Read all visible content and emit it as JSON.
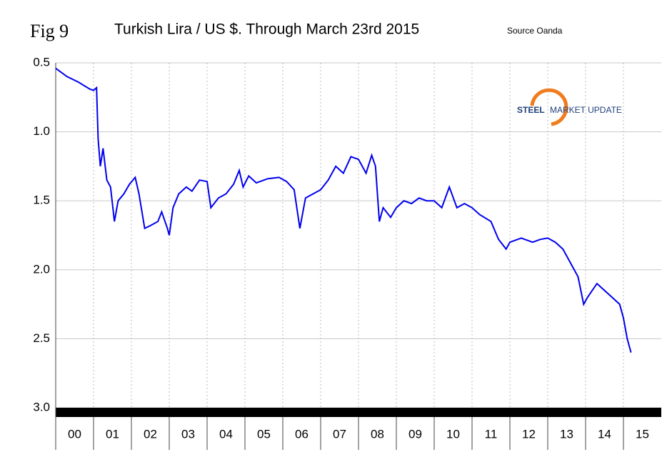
{
  "chart_data": {
    "type": "line",
    "figure_label": "Fig 9",
    "title": "Turkish Lira / US $. Through March 23rd 2015",
    "source": "Source Oanda",
    "logo": {
      "bold": "STEEL",
      "rest": "MARKET UPDATE"
    },
    "ylim": [
      0.5,
      3.0
    ],
    "y_inverted": true,
    "yticks": [
      {
        "value": 0.5,
        "label": "0.5"
      },
      {
        "value": 1.0,
        "label": "1.0"
      },
      {
        "value": 1.5,
        "label": "1.5"
      },
      {
        "value": 2.0,
        "label": "2.0"
      },
      {
        "value": 2.5,
        "label": "2.5"
      },
      {
        "value": 3.0,
        "label": "3.0"
      }
    ],
    "xlim": [
      0,
      16
    ],
    "xticks": [
      {
        "value": 0.5,
        "label": "00"
      },
      {
        "value": 1.5,
        "label": "01"
      },
      {
        "value": 2.5,
        "label": "02"
      },
      {
        "value": 3.5,
        "label": "03"
      },
      {
        "value": 4.5,
        "label": "04"
      },
      {
        "value": 5.5,
        "label": "05"
      },
      {
        "value": 6.5,
        "label": "06"
      },
      {
        "value": 7.5,
        "label": "07"
      },
      {
        "value": 8.5,
        "label": "08"
      },
      {
        "value": 9.5,
        "label": "09"
      },
      {
        "value": 10.5,
        "label": "10"
      },
      {
        "value": 11.5,
        "label": "11"
      },
      {
        "value": 12.5,
        "label": "12"
      },
      {
        "value": 13.5,
        "label": "13"
      },
      {
        "value": 14.5,
        "label": "14"
      },
      {
        "value": 15.5,
        "label": "15"
      }
    ],
    "grid": true,
    "series": [
      {
        "color": "#0000ee",
        "x": [
          0,
          0.3,
          0.6,
          0.9,
          1.0,
          1.08,
          1.12,
          1.18,
          1.25,
          1.35,
          1.45,
          1.55,
          1.65,
          1.8,
          1.95,
          2.1,
          2.2,
          2.35,
          2.5,
          2.7,
          2.8,
          2.95,
          3.0,
          3.1,
          3.25,
          3.45,
          3.6,
          3.8,
          4.0,
          4.1,
          4.3,
          4.5,
          4.7,
          4.85,
          4.95,
          5.1,
          5.3,
          5.6,
          5.9,
          6.1,
          6.3,
          6.45,
          6.6,
          6.8,
          7.0,
          7.2,
          7.4,
          7.6,
          7.8,
          8.0,
          8.2,
          8.35,
          8.45,
          8.55,
          8.65,
          8.85,
          9.0,
          9.2,
          9.4,
          9.6,
          9.8,
          10.0,
          10.2,
          10.4,
          10.6,
          10.8,
          11.0,
          11.2,
          11.5,
          11.7,
          11.9,
          12.0,
          12.3,
          12.6,
          12.8,
          13.0,
          13.2,
          13.4,
          13.6,
          13.8,
          13.95,
          14.05,
          14.3,
          14.5,
          14.7,
          14.9,
          15.0,
          15.1,
          15.2
        ],
        "values": [
          0.54,
          0.6,
          0.64,
          0.69,
          0.7,
          0.68,
          1.05,
          1.25,
          1.12,
          1.35,
          1.4,
          1.65,
          1.5,
          1.45,
          1.38,
          1.33,
          1.45,
          1.7,
          1.68,
          1.65,
          1.58,
          1.7,
          1.75,
          1.55,
          1.45,
          1.4,
          1.43,
          1.35,
          1.36,
          1.55,
          1.48,
          1.45,
          1.38,
          1.28,
          1.4,
          1.32,
          1.37,
          1.34,
          1.33,
          1.36,
          1.42,
          1.7,
          1.48,
          1.45,
          1.42,
          1.35,
          1.25,
          1.3,
          1.18,
          1.2,
          1.3,
          1.17,
          1.25,
          1.65,
          1.55,
          1.62,
          1.55,
          1.5,
          1.52,
          1.48,
          1.5,
          1.5,
          1.55,
          1.4,
          1.55,
          1.52,
          1.55,
          1.6,
          1.65,
          1.78,
          1.85,
          1.8,
          1.77,
          1.8,
          1.78,
          1.77,
          1.8,
          1.85,
          1.95,
          2.05,
          2.25,
          2.2,
          2.1,
          2.15,
          2.2,
          2.25,
          2.35,
          2.5,
          2.6
        ]
      }
    ]
  }
}
